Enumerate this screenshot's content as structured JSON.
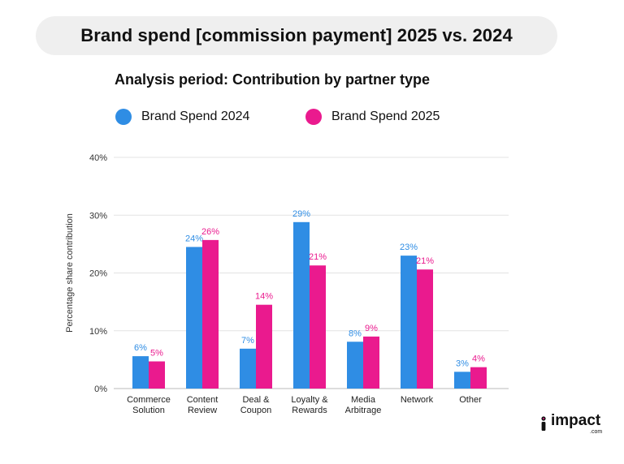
{
  "header": {
    "title": "Brand spend [commission payment] 2025 vs. 2024"
  },
  "subtitle": "Analysis period: Contribution by partner type",
  "legend": [
    {
      "label": "Brand Spend 2024",
      "color": "#2f8de4"
    },
    {
      "label": "Brand Spend 2025",
      "color": "#ea1a8e"
    }
  ],
  "brand": {
    "name": "impact",
    "sub": ".com"
  },
  "chart_data": {
    "type": "bar",
    "categories": [
      [
        "Commerce",
        "Solution"
      ],
      [
        "Content",
        "Review"
      ],
      [
        "Deal &",
        "Coupon"
      ],
      [
        "Loyalty &",
        "Rewards"
      ],
      [
        "Media",
        "Arbitrage"
      ],
      [
        "Network"
      ],
      [
        "Other"
      ]
    ],
    "series": [
      {
        "name": "Brand Spend 2024",
        "color": "#2f8de4",
        "values": [
          5.6,
          24.5,
          6.9,
          28.8,
          8.1,
          23.0,
          2.9
        ],
        "labels": [
          "6%",
          "24%",
          "7%",
          "29%",
          "8%",
          "23%",
          "3%"
        ]
      },
      {
        "name": "Brand Spend 2025",
        "color": "#ea1a8e",
        "values": [
          4.7,
          25.7,
          14.5,
          21.3,
          9.0,
          20.6,
          3.7
        ],
        "labels": [
          "5%",
          "26%",
          "14%",
          "21%",
          "9%",
          "21%",
          "4%"
        ]
      }
    ],
    "ylabel": "Percentage share contribution",
    "ylim": [
      0,
      40
    ],
    "yticks": [
      0,
      10,
      20,
      30,
      40
    ],
    "ytick_labels": [
      "0%",
      "10%",
      "20%",
      "30%",
      "40%"
    ],
    "grid": true,
    "legend_position": "top"
  }
}
